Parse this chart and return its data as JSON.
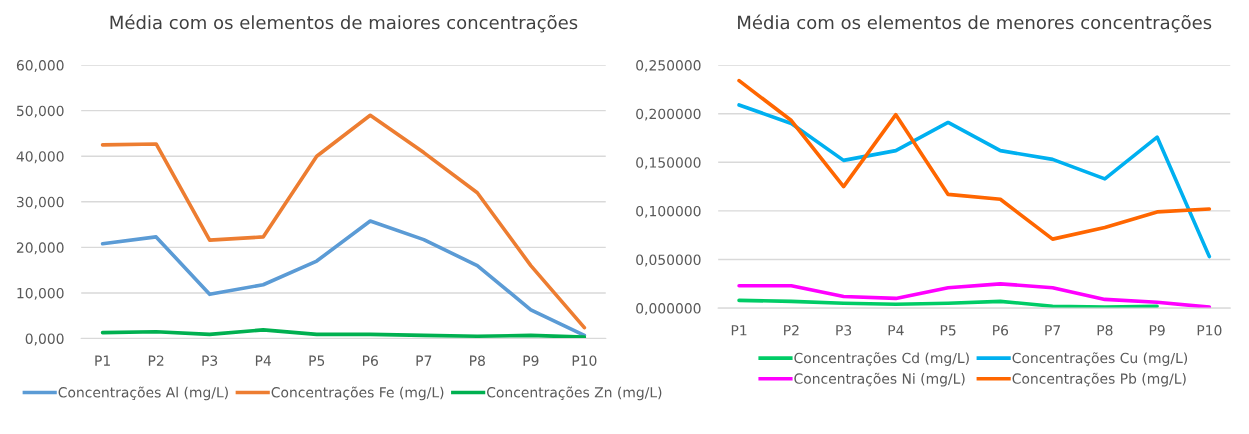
{
  "chart_data": [
    {
      "type": "line",
      "title": "Média com os elementos de maiores concentrações",
      "categories": [
        "P1",
        "P2",
        "P3",
        "P4",
        "P5",
        "P6",
        "P7",
        "P8",
        "P9",
        "P10"
      ],
      "series": [
        {
          "name": "Concentrações Al (mg/L)",
          "color": "#5b9bd5",
          "values": [
            20.8,
            22.3,
            9.7,
            11.8,
            17.0,
            25.8,
            21.7,
            16.0,
            6.3,
            0.7
          ]
        },
        {
          "name": "Concentrações Fe (mg/L)",
          "color": "#ed7d31",
          "values": [
            42.5,
            42.7,
            21.6,
            22.3,
            40.0,
            49.0,
            40.8,
            32.0,
            16.0,
            2.4
          ]
        },
        {
          "name": "Concentrações Zn (mg/L)",
          "color": "#00b050",
          "values": [
            1.3,
            1.5,
            0.9,
            1.9,
            0.9,
            0.9,
            0.7,
            0.5,
            0.7,
            0.3
          ]
        }
      ],
      "ylim": [
        0,
        60
      ],
      "yticks": [
        {
          "value": 0,
          "label": "0,000"
        },
        {
          "value": 10,
          "label": "10,000"
        },
        {
          "value": 20,
          "label": "20,000"
        },
        {
          "value": 30,
          "label": "30,000"
        },
        {
          "value": 40,
          "label": "40,000"
        },
        {
          "value": 50,
          "label": "50,000"
        },
        {
          "value": 60,
          "label": "60,000"
        }
      ],
      "grid": "y",
      "legend": "bottom",
      "marker": "none",
      "line_style": "solid"
    },
    {
      "type": "line",
      "title": "Média com os elementos de menores concentrações",
      "categories": [
        "P1",
        "P2",
        "P3",
        "P4",
        "P5",
        "P6",
        "P7",
        "P8",
        "P9",
        "P10"
      ],
      "series": [
        {
          "name": "Concentrações Cd (mg/L)",
          "color": "#00cc66",
          "values": [
            0.008,
            0.007,
            0.005,
            0.004,
            0.005,
            0.007,
            0.002,
            0.001,
            0.002,
            null
          ]
        },
        {
          "name": "Concentrações Cu (mg/L)",
          "color": "#00b0f0",
          "values": [
            0.209,
            0.19,
            0.152,
            0.162,
            0.191,
            0.162,
            0.153,
            0.133,
            0.176,
            0.053
          ]
        },
        {
          "name": "Concentrações Ni (mg/L)",
          "color": "#ff00ff",
          "values": [
            0.023,
            0.023,
            0.012,
            0.01,
            0.021,
            0.025,
            0.021,
            0.009,
            0.006,
            0.001
          ]
        },
        {
          "name": "Concentrações Pb (mg/L)",
          "color": "#ff6600",
          "values": [
            0.234,
            0.193,
            0.125,
            0.199,
            0.117,
            0.112,
            0.071,
            0.083,
            0.099,
            0.102
          ]
        }
      ],
      "ylim": [
        0,
        0.25
      ],
      "yticks": [
        {
          "value": 0,
          "label": "0,000000"
        },
        {
          "value": 0.05,
          "label": "0,050000"
        },
        {
          "value": 0.1,
          "label": "0,100000"
        },
        {
          "value": 0.15,
          "label": "0,150000"
        },
        {
          "value": 0.2,
          "label": "0,200000"
        },
        {
          "value": 0.25,
          "label": "0,250000"
        }
      ],
      "grid": "y",
      "legend": "bottom",
      "marker": "none",
      "line_style": "solid"
    }
  ]
}
